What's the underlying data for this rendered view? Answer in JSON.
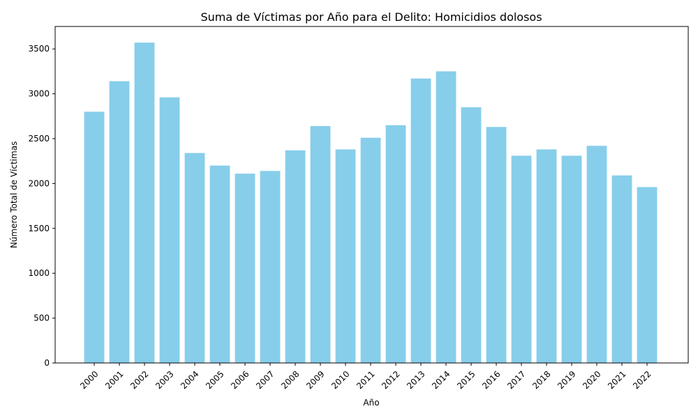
{
  "chart_data": {
    "type": "bar",
    "title": "Suma de Víctimas por Año para el Delito: Homicidios dolosos",
    "xlabel": "Año",
    "ylabel": "Número Total de Víctimas",
    "categories": [
      "2000",
      "2001",
      "2002",
      "2003",
      "2004",
      "2005",
      "2006",
      "2007",
      "2008",
      "2009",
      "2010",
      "2011",
      "2012",
      "2013",
      "2014",
      "2015",
      "2016",
      "2017",
      "2018",
      "2019",
      "2020",
      "2021",
      "2022"
    ],
    "values": [
      2800,
      3140,
      3570,
      2960,
      2340,
      2200,
      2110,
      2140,
      2370,
      2640,
      2380,
      2510,
      2650,
      3170,
      3250,
      2850,
      2630,
      2310,
      2380,
      2310,
      2420,
      2090,
      1960
    ],
    "ylim": [
      0,
      3750
    ],
    "yticks": [
      0,
      500,
      1000,
      1500,
      2000,
      2500,
      3000,
      3500
    ],
    "grid": false,
    "legend": "none",
    "bar_color": "#87CEEB",
    "x_tick_rotation": 45
  }
}
